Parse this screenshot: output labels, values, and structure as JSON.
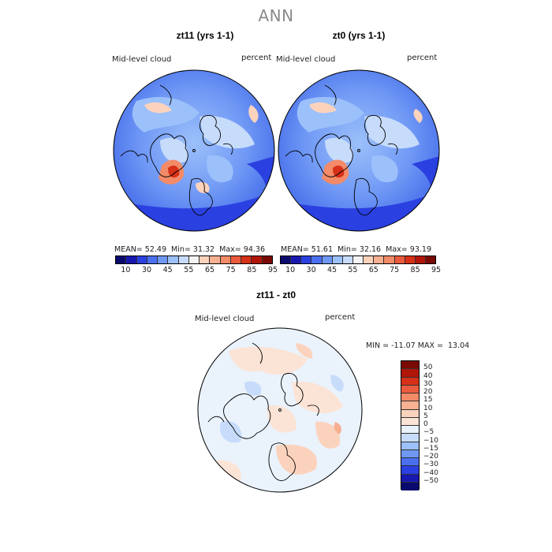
{
  "title": "ANN",
  "panels": [
    {
      "title": "zt11 (yrs 1-1)",
      "variable": "Mid-level cloud",
      "units": "percent",
      "stats": {
        "mean_label": "MEAN=",
        "mean": "52.49",
        "min_label": "Min=",
        "min": "31.32",
        "max_label": "Max=",
        "max": "94.36"
      }
    },
    {
      "title": "zt0 (yrs 1-1)",
      "variable": "Mid-level cloud",
      "units": "percent",
      "stats": {
        "mean_label": "MEAN=",
        "mean": "51.61",
        "min_label": "Min=",
        "min": "32.16",
        "max_label": "Max=",
        "max": "93.19"
      }
    }
  ],
  "colorbar": {
    "colors": [
      "#0a0a6e",
      "#1818b0",
      "#2a40e0",
      "#4a70f0",
      "#6f98f5",
      "#9cc0fa",
      "#c7dcfb",
      "#f4f4f4",
      "#fbd3bd",
      "#f7b092",
      "#f38a68",
      "#ea5a3e",
      "#d63018",
      "#b01508",
      "#7a0a04"
    ],
    "labels": [
      "10",
      "30",
      "45",
      "55",
      "65",
      "75",
      "85",
      "95"
    ]
  },
  "diff": {
    "title": "zt11 - zt0",
    "variable": "Mid-level cloud",
    "units": "percent",
    "minmax": "MIN = -11.07 MAX =  13.04",
    "colors": [
      "#7a0a04",
      "#b01508",
      "#d63018",
      "#ea5a3e",
      "#f38a68",
      "#f7b092",
      "#fbd3bd",
      "#fbe4d6",
      "#eaf2fc",
      "#c7dcfb",
      "#9cc0fa",
      "#6f98f5",
      "#4a70f0",
      "#2a40e0",
      "#1818b0",
      "#0a0a6e"
    ],
    "labels": [
      "50",
      "40",
      "30",
      "20",
      "15",
      "10",
      "5",
      "0",
      "−5",
      "−10",
      "−15",
      "−20",
      "−30",
      "−40",
      "−50"
    ]
  }
}
